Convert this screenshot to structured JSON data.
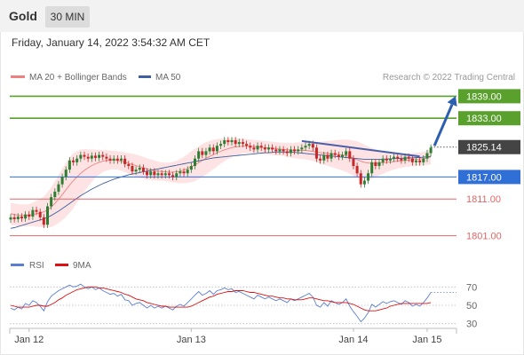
{
  "header": {
    "title": "Gold",
    "timeframe": "30 MIN"
  },
  "datetime": "Friday, January 14, 2022 3:54:32 AM CET",
  "legend": {
    "ma20_label": "MA 20 + Bollinger Bands",
    "ma50_label": "MA 50",
    "credit": "Research © 2022 Trading Central"
  },
  "rsi_legend": {
    "rsi_label": "RSI",
    "ma_label": "9MA"
  },
  "colors": {
    "resistance": "#5aa02c",
    "support_blue": "#2f6fd6",
    "support_red": "#e06666",
    "ma20": "#f08080",
    "ma50": "#3f5fa0",
    "band": "#fde3e3",
    "up_candle": "#2e7d32",
    "down_candle": "#c62828",
    "trendline": "#4a5fa8",
    "arrow": "#2d5fb0",
    "rsi": "#5a7fd0",
    "rsi_ma": "#dd1111"
  },
  "chart_data": [
    {
      "type": "candlestick",
      "ylim": [
        1798,
        1842
      ],
      "x_ticks": [
        "Jan 12",
        "Jan 13",
        "Jan 14",
        "Jan 15"
      ],
      "x_tick_index": [
        5,
        49,
        93,
        113
      ],
      "levels": [
        {
          "label": "1839.00",
          "value": 1839.0,
          "kind": "resistance"
        },
        {
          "label": "1833.00",
          "value": 1833.0,
          "kind": "resistance"
        },
        {
          "label": "1825.14",
          "value": 1825.14,
          "kind": "last"
        },
        {
          "label": "1817.00",
          "value": 1817.0,
          "kind": "pivot"
        },
        {
          "label": "1811.00",
          "value": 1811.0,
          "kind": "support"
        },
        {
          "label": "1801.00",
          "value": 1801.0,
          "kind": "support"
        }
      ],
      "close": [
        1806.0,
        1805.5,
        1806.2,
        1805.7,
        1806.8,
        1806.2,
        1808.0,
        1807.5,
        1806.0,
        1804.0,
        1809.0,
        1811.5,
        1813.0,
        1815.0,
        1817.0,
        1819.0,
        1821.5,
        1821.0,
        1822.0,
        1823.0,
        1822.5,
        1822.0,
        1822.8,
        1822.2,
        1823.0,
        1822.5,
        1822.0,
        1821.5,
        1822.0,
        1821.5,
        1822.0,
        1820.5,
        1820.0,
        1818.5,
        1819.0,
        1819.5,
        1818.5,
        1817.5,
        1818.5,
        1817.5,
        1818.0,
        1817.5,
        1818.0,
        1817.5,
        1817.0,
        1818.0,
        1818.5,
        1818.0,
        1819.0,
        1820.0,
        1822.0,
        1824.0,
        1823.0,
        1824.0,
        1825.0,
        1824.0,
        1825.5,
        1826.0,
        1827.0,
        1826.5,
        1827.0,
        1826.0,
        1826.5,
        1826.0,
        1825.5,
        1825.0,
        1824.5,
        1825.5,
        1825.0,
        1824.5,
        1825.0,
        1824.5,
        1824.0,
        1824.5,
        1824.0,
        1823.5,
        1824.5,
        1824.0,
        1824.5,
        1825.0,
        1825.5,
        1826.0,
        1825.0,
        1822.0,
        1821.5,
        1823.0,
        1822.0,
        1823.5,
        1823.0,
        1822.5,
        1823.0,
        1824.0,
        1822.0,
        1820.0,
        1818.0,
        1815.0,
        1816.0,
        1818.0,
        1821.0,
        1820.0,
        1821.0,
        1822.0,
        1821.5,
        1822.0,
        1822.5,
        1822.0,
        1821.5,
        1822.5,
        1822.0,
        1821.0,
        1821.5,
        1821.0,
        1822.0,
        1823.5,
        1825.0
      ],
      "ma20": [
        1807.0,
        1806.8,
        1806.6,
        1806.5,
        1806.5,
        1806.6,
        1806.8,
        1807.0,
        1807.2,
        1807.5,
        1808.0,
        1808.8,
        1809.8,
        1811.0,
        1812.2,
        1813.5,
        1814.8,
        1816.0,
        1817.0,
        1818.0,
        1818.8,
        1819.5,
        1820.1,
        1820.6,
        1821.0,
        1821.3,
        1821.5,
        1821.6,
        1821.6,
        1821.5,
        1821.3,
        1821.0,
        1820.7,
        1820.4,
        1820.1,
        1819.8,
        1819.5,
        1819.2,
        1819.0,
        1818.8,
        1818.6,
        1818.5,
        1818.4,
        1818.3,
        1818.3,
        1818.4,
        1818.6,
        1818.9,
        1819.3,
        1819.8,
        1820.3,
        1820.9,
        1821.5,
        1822.1,
        1822.6,
        1823.1,
        1823.6,
        1824.0,
        1824.4,
        1824.7,
        1825.0,
        1825.2,
        1825.3,
        1825.4,
        1825.4,
        1825.4,
        1825.3,
        1825.2,
        1825.1,
        1825.0,
        1824.9,
        1824.8,
        1824.7,
        1824.6,
        1824.5,
        1824.4,
        1824.3,
        1824.2,
        1824.2,
        1824.2,
        1824.2,
        1824.1,
        1824.0,
        1823.8,
        1823.6,
        1823.5,
        1823.4,
        1823.3,
        1823.2,
        1823.1,
        1823.0,
        1822.8,
        1822.5,
        1822.1,
        1821.7,
        1821.3,
        1821.0,
        1820.8,
        1820.7,
        1820.7,
        1820.8,
        1820.9,
        1821.0,
        1821.1,
        1821.2,
        1821.3,
        1821.4,
        1821.5,
        1821.6,
        1821.7,
        1821.8,
        1821.9,
        1822.0,
        1822.2,
        1822.5
      ],
      "ma50": [
        1803.0,
        1803.2,
        1803.5,
        1803.8,
        1804.1,
        1804.4,
        1804.7,
        1805.0,
        1805.3,
        1805.6,
        1806.0,
        1806.5,
        1807.1,
        1807.7,
        1808.4,
        1809.1,
        1809.8,
        1810.5,
        1811.2,
        1811.9,
        1812.5,
        1813.1,
        1813.7,
        1814.2,
        1814.7,
        1815.2,
        1815.6,
        1816.0,
        1816.4,
        1816.7,
        1817.0,
        1817.3,
        1817.6,
        1817.8,
        1818.0,
        1818.2,
        1818.4,
        1818.6,
        1818.8,
        1819.0,
        1819.2,
        1819.4,
        1819.6,
        1819.8,
        1820.0,
        1820.2,
        1820.4,
        1820.6,
        1820.8,
        1821.0,
        1821.2,
        1821.4,
        1821.6,
        1821.8,
        1822.0,
        1822.2,
        1822.3,
        1822.4,
        1822.5,
        1822.6,
        1822.7,
        1822.8,
        1822.9,
        1823.0,
        1823.1,
        1823.2,
        1823.3,
        1823.4,
        1823.5,
        1823.6,
        1823.6,
        1823.7,
        1823.8,
        1823.8,
        1823.8,
        1823.8,
        1823.8,
        1823.7,
        1823.6,
        1823.5,
        1823.4,
        1823.3,
        1823.2,
        1823.1,
        1823.0,
        1822.9,
        1822.8,
        1822.7,
        1822.6,
        1822.5,
        1822.4,
        1822.3,
        1822.2,
        1822.1,
        1822.0,
        1821.9,
        1821.8,
        1821.8,
        1821.8,
        1821.8,
        1821.8,
        1821.8,
        1821.9,
        1821.9,
        1822.0,
        1822.0,
        1822.1,
        1822.1,
        1822.2,
        1822.2,
        1822.3,
        1822.3,
        1822.4,
        1822.5,
        1822.6
      ],
      "bb_width": [
        3.0,
        3.0,
        3.0,
        3.0,
        3.0,
        3.0,
        3.2,
        3.5,
        3.8,
        4.2,
        4.8,
        5.4,
        6.0,
        6.5,
        7.0,
        7.4,
        7.6,
        7.5,
        7.0,
        6.5,
        5.8,
        5.0,
        4.4,
        3.8,
        3.4,
        3.0,
        2.8,
        2.6,
        2.5,
        2.5,
        2.6,
        2.7,
        2.8,
        2.9,
        3.0,
        3.0,
        3.0,
        2.9,
        2.8,
        2.7,
        2.6,
        2.5,
        2.5,
        2.6,
        2.8,
        3.0,
        3.3,
        3.6,
        3.9,
        4.2,
        4.4,
        4.5,
        4.5,
        4.4,
        4.2,
        4.0,
        3.7,
        3.4,
        3.1,
        2.8,
        2.6,
        2.4,
        2.2,
        2.0,
        1.9,
        1.8,
        1.8,
        1.8,
        1.8,
        1.8,
        1.8,
        1.8,
        1.8,
        1.8,
        1.8,
        1.9,
        2.0,
        2.1,
        2.2,
        2.3,
        2.4,
        2.5,
        2.6,
        2.8,
        3.0,
        3.2,
        3.4,
        3.6,
        3.8,
        4.0,
        4.2,
        4.4,
        4.6,
        4.8,
        5.0,
        5.0,
        4.8,
        4.5,
        4.2,
        3.8,
        3.4,
        3.0,
        2.7,
        2.4,
        2.2,
        2.0,
        1.9,
        1.8,
        1.8,
        1.8,
        1.8,
        1.8,
        1.8,
        1.9,
        2.0
      ],
      "trendline": {
        "from_index": 79,
        "from_value": 1826.8,
        "to_index": 111,
        "to_value": 1822.6
      },
      "projection_arrow": {
        "from_value": 1825.5,
        "to_value": 1839.0
      }
    },
    {
      "type": "line",
      "name": "RSI",
      "ylim": [
        20,
        80
      ],
      "y_ticks": [
        30,
        50,
        70
      ],
      "series": [
        {
          "name": "RSI",
          "values": [
            47,
            45,
            48,
            46,
            52,
            50,
            55,
            53,
            49,
            44,
            54,
            60,
            63,
            66,
            68,
            70,
            72,
            70,
            71,
            73,
            70,
            68,
            70,
            67,
            69,
            66,
            64,
            62,
            63,
            60,
            62,
            56,
            55,
            50,
            52,
            53,
            50,
            47,
            50,
            47,
            49,
            47,
            49,
            47,
            45,
            49,
            51,
            49,
            53,
            57,
            61,
            65,
            61,
            63,
            66,
            62,
            66,
            67,
            69,
            67,
            68,
            64,
            65,
            63,
            61,
            59,
            57,
            61,
            59,
            57,
            59,
            57,
            55,
            57,
            55,
            53,
            57,
            55,
            57,
            59,
            61,
            63,
            59,
            50,
            48,
            53,
            49,
            55,
            53,
            51,
            53,
            57,
            49,
            43,
            38,
            32,
            36,
            42,
            51,
            48,
            51,
            54,
            52,
            54,
            55,
            53,
            51,
            55,
            53,
            49,
            51,
            49,
            53,
            58,
            64
          ]
        },
        {
          "name": "9MA",
          "values": [
            50,
            49,
            48,
            48,
            48,
            48,
            49,
            50,
            50,
            49,
            49,
            51,
            53,
            56,
            58,
            61,
            63,
            65,
            67,
            68,
            69,
            70,
            70,
            70,
            69,
            69,
            68,
            67,
            66,
            65,
            64,
            62,
            61,
            59,
            57,
            56,
            55,
            53,
            52,
            51,
            50,
            49,
            49,
            48,
            48,
            48,
            48,
            48,
            48,
            49,
            51,
            53,
            55,
            57,
            59,
            60,
            62,
            63,
            64,
            65,
            65,
            66,
            66,
            66,
            65,
            64,
            64,
            63,
            62,
            61,
            60,
            60,
            59,
            58,
            58,
            57,
            57,
            56,
            56,
            56,
            57,
            58,
            58,
            57,
            56,
            55,
            55,
            54,
            53,
            53,
            53,
            53,
            52,
            51,
            49,
            47,
            45,
            44,
            44,
            44,
            45,
            46,
            47,
            49,
            50,
            51,
            52,
            52,
            52,
            52,
            52,
            52,
            52,
            52,
            53
          ]
        }
      ]
    }
  ]
}
